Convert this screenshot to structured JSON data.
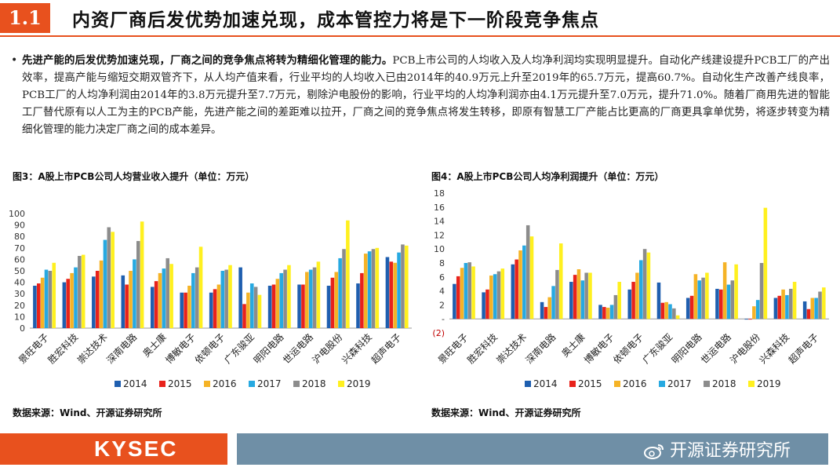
{
  "header": {
    "section_number": "1.1",
    "title": "内资厂商后发优势加速兑现，成本管控力将是下一阶段竞争焦点"
  },
  "bullet": {
    "bold": "先进产能的后发优势加速兑现，厂商之间的竞争焦点将转为精细化管理的能力。",
    "text": "PCB上市公司的人均收入及人均净利润均实现明显提升。自动化产线建设提升PCB工厂的产出效率，提高产能与缩短交期双管齐下，从人均产值来看，行业平均的人均收入已由2014年的40.9万元上升至2019年的65.7万元，提高60.7%。自动化生产改善产线良率，PCB工厂的人均净利润由2014年的3.8万元提升至7.7万元，剔除沪电股份的影响，行业平均的人均净利润亦由4.1万元提升至7.0万元，提升71.0%。随着厂商用先进的智能工厂替代原有以人工为主的PCB产能，先进产能之间的差距难以拉开，厂商之间的竞争焦点将发生转移，即原有智慧工厂产能占比更高的厂商更具拿单优势，将逐步转变为精细化管理的能力决定厂商之间的成本差异。"
  },
  "figures": {
    "fig3_title": "图3：A股上市PCB公司人均营业收入提升（单位：万元）",
    "fig4_title": "图4：A股上市PCB公司人均净利润提升（单位：万元）",
    "fig3_source": "数据来源：Wind、开源证券研究所",
    "fig4_source": "数据来源：Wind、开源证券研究所"
  },
  "footer": {
    "logo": "KYSEC",
    "brand": "开源证券研究所"
  },
  "colors": {
    "accent": "#E8511E",
    "footer_bar": "#6F8FA6",
    "series": [
      "#1F5FAF",
      "#E8221B",
      "#F5B326",
      "#27A9E1",
      "#8C8C8C",
      "#FFF01F"
    ]
  },
  "chart_data": [
    {
      "type": "bar",
      "categories": [
        "景旺电子",
        "胜宏科技",
        "崇达技术",
        "深南电路",
        "奥士康",
        "博敏电子",
        "依顿电子",
        "广东骏亚",
        "明阳电路",
        "世运电路",
        "沪电股份",
        "兴森科技",
        "超声电子"
      ],
      "series": [
        {
          "name": "2014",
          "values": [
            37,
            40,
            45,
            46,
            36,
            31,
            31,
            53,
            37,
            38,
            37,
            39,
            62
          ]
        },
        {
          "name": "2015",
          "values": [
            39,
            43,
            50,
            38,
            41,
            31,
            34,
            21,
            38,
            38,
            44,
            48,
            58
          ]
        },
        {
          "name": "2016",
          "values": [
            44,
            48,
            59,
            50,
            48,
            37,
            38,
            31,
            43,
            49,
            49,
            65,
            57
          ]
        },
        {
          "name": "2017",
          "values": [
            51,
            53,
            77,
            60,
            52,
            48,
            50,
            39,
            48,
            51,
            61,
            67,
            66
          ]
        },
        {
          "name": "2018",
          "values": [
            50,
            63,
            88,
            76,
            61,
            53,
            51,
            36,
            51,
            53,
            69,
            69,
            73
          ]
        },
        {
          "name": "2019",
          "values": [
            57,
            64,
            84,
            93,
            56,
            71,
            55,
            29,
            55,
            58,
            94,
            70,
            72
          ]
        }
      ],
      "ylim": [
        0,
        100
      ],
      "yticks": [
        0,
        10,
        20,
        30,
        40,
        50,
        60,
        70,
        80,
        90,
        100
      ],
      "legend": "bottom"
    },
    {
      "type": "bar",
      "categories": [
        "景旺电子",
        "胜宏科技",
        "崇达技术",
        "深南电路",
        "奥士康",
        "博敏电子",
        "依顿电子",
        "广东骏亚",
        "明阳电路",
        "世运电路",
        "沪电股份",
        "兴森科技",
        "超声电子"
      ],
      "series": [
        {
          "name": "2014",
          "values": [
            5.0,
            3.8,
            7.8,
            2.4,
            5.3,
            2.0,
            4.2,
            5.2,
            3.0,
            4.3,
            -0.1,
            3.0,
            2.5
          ]
        },
        {
          "name": "2015",
          "values": [
            6.1,
            4.2,
            8.5,
            1.7,
            6.3,
            1.7,
            5.3,
            2.3,
            3.3,
            4.2,
            -0.1,
            3.3,
            1.4
          ]
        },
        {
          "name": "2016",
          "values": [
            7.3,
            6.2,
            9.8,
            3.1,
            7.1,
            1.6,
            6.6,
            2.4,
            6.4,
            8.1,
            1.8,
            4.2,
            3.0
          ]
        },
        {
          "name": "2017",
          "values": [
            8.0,
            6.4,
            10.5,
            4.7,
            5.5,
            2.0,
            8.4,
            2.1,
            5.5,
            4.9,
            2.7,
            3.4,
            3.0
          ]
        },
        {
          "name": "2018",
          "values": [
            8.1,
            6.8,
            13.4,
            7.0,
            6.6,
            3.4,
            10.0,
            1.5,
            5.9,
            5.5,
            8.0,
            4.3,
            3.9
          ]
        },
        {
          "name": "2019",
          "values": [
            7.5,
            7.2,
            11.8,
            10.8,
            6.6,
            5.3,
            9.5,
            0.5,
            6.6,
            7.8,
            15.9,
            5.3,
            4.5
          ]
        }
      ],
      "ylim": [
        -2,
        18
      ],
      "yticks": [
        -2,
        0,
        2,
        4,
        6,
        8,
        10,
        12,
        14,
        16,
        18
      ],
      "ytick_labels": [
        "(2)",
        "-",
        "2",
        "4",
        "6",
        "8",
        "10",
        "12",
        "14",
        "16",
        "18"
      ],
      "legend": "bottom"
    }
  ]
}
